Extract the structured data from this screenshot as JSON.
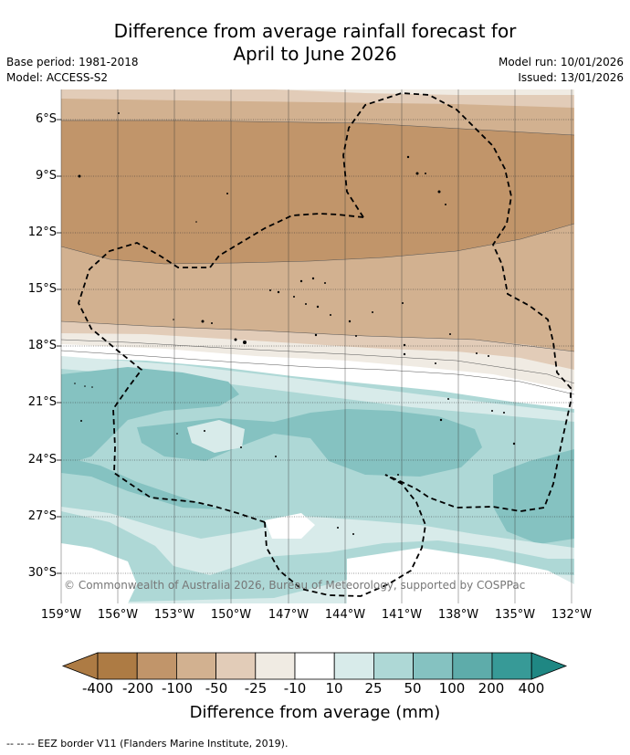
{
  "title": {
    "line1": "Difference from average rainfall forecast for",
    "line2": "April to June 2026"
  },
  "meta_left": {
    "base_period": "Base period: 1981-2018",
    "model": "Model: ACCESS-S2"
  },
  "meta_right": {
    "model_run": "Model run: 10/01/2026",
    "issued": "Issued: 13/01/2026"
  },
  "latitude_labels": [
    "6°S",
    "9°S",
    "12°S",
    "15°S",
    "18°S",
    "21°S",
    "24°S",
    "27°S",
    "30°S"
  ],
  "longitude_labels": [
    "159°W",
    "156°W",
    "153°W",
    "150°W",
    "147°W",
    "144°W",
    "141°W",
    "138°W",
    "135°W",
    "132°W"
  ],
  "copyright": "© Commonwealth of Australia 2026, Bureau of Meteorology, supported by COSPPac",
  "legend": {
    "title": "Difference from average (mm)",
    "ticks": [
      "-400",
      "-200",
      "-100",
      "-50",
      "-25",
      "-10",
      "10",
      "25",
      "50",
      "100",
      "200",
      "400"
    ],
    "colors": [
      "#ad7b44",
      "#c1956a",
      "#d2b190",
      "#e2ccb8",
      "#f0ebe3",
      "#ffffff",
      "#d8ebea",
      "#aed8d6",
      "#85c2c1",
      "#5eacaa",
      "#379a97",
      "#1f8783"
    ]
  },
  "footer": "--  --  -- EEZ border V11 (Flanders Marine Institute, 2019)."
}
